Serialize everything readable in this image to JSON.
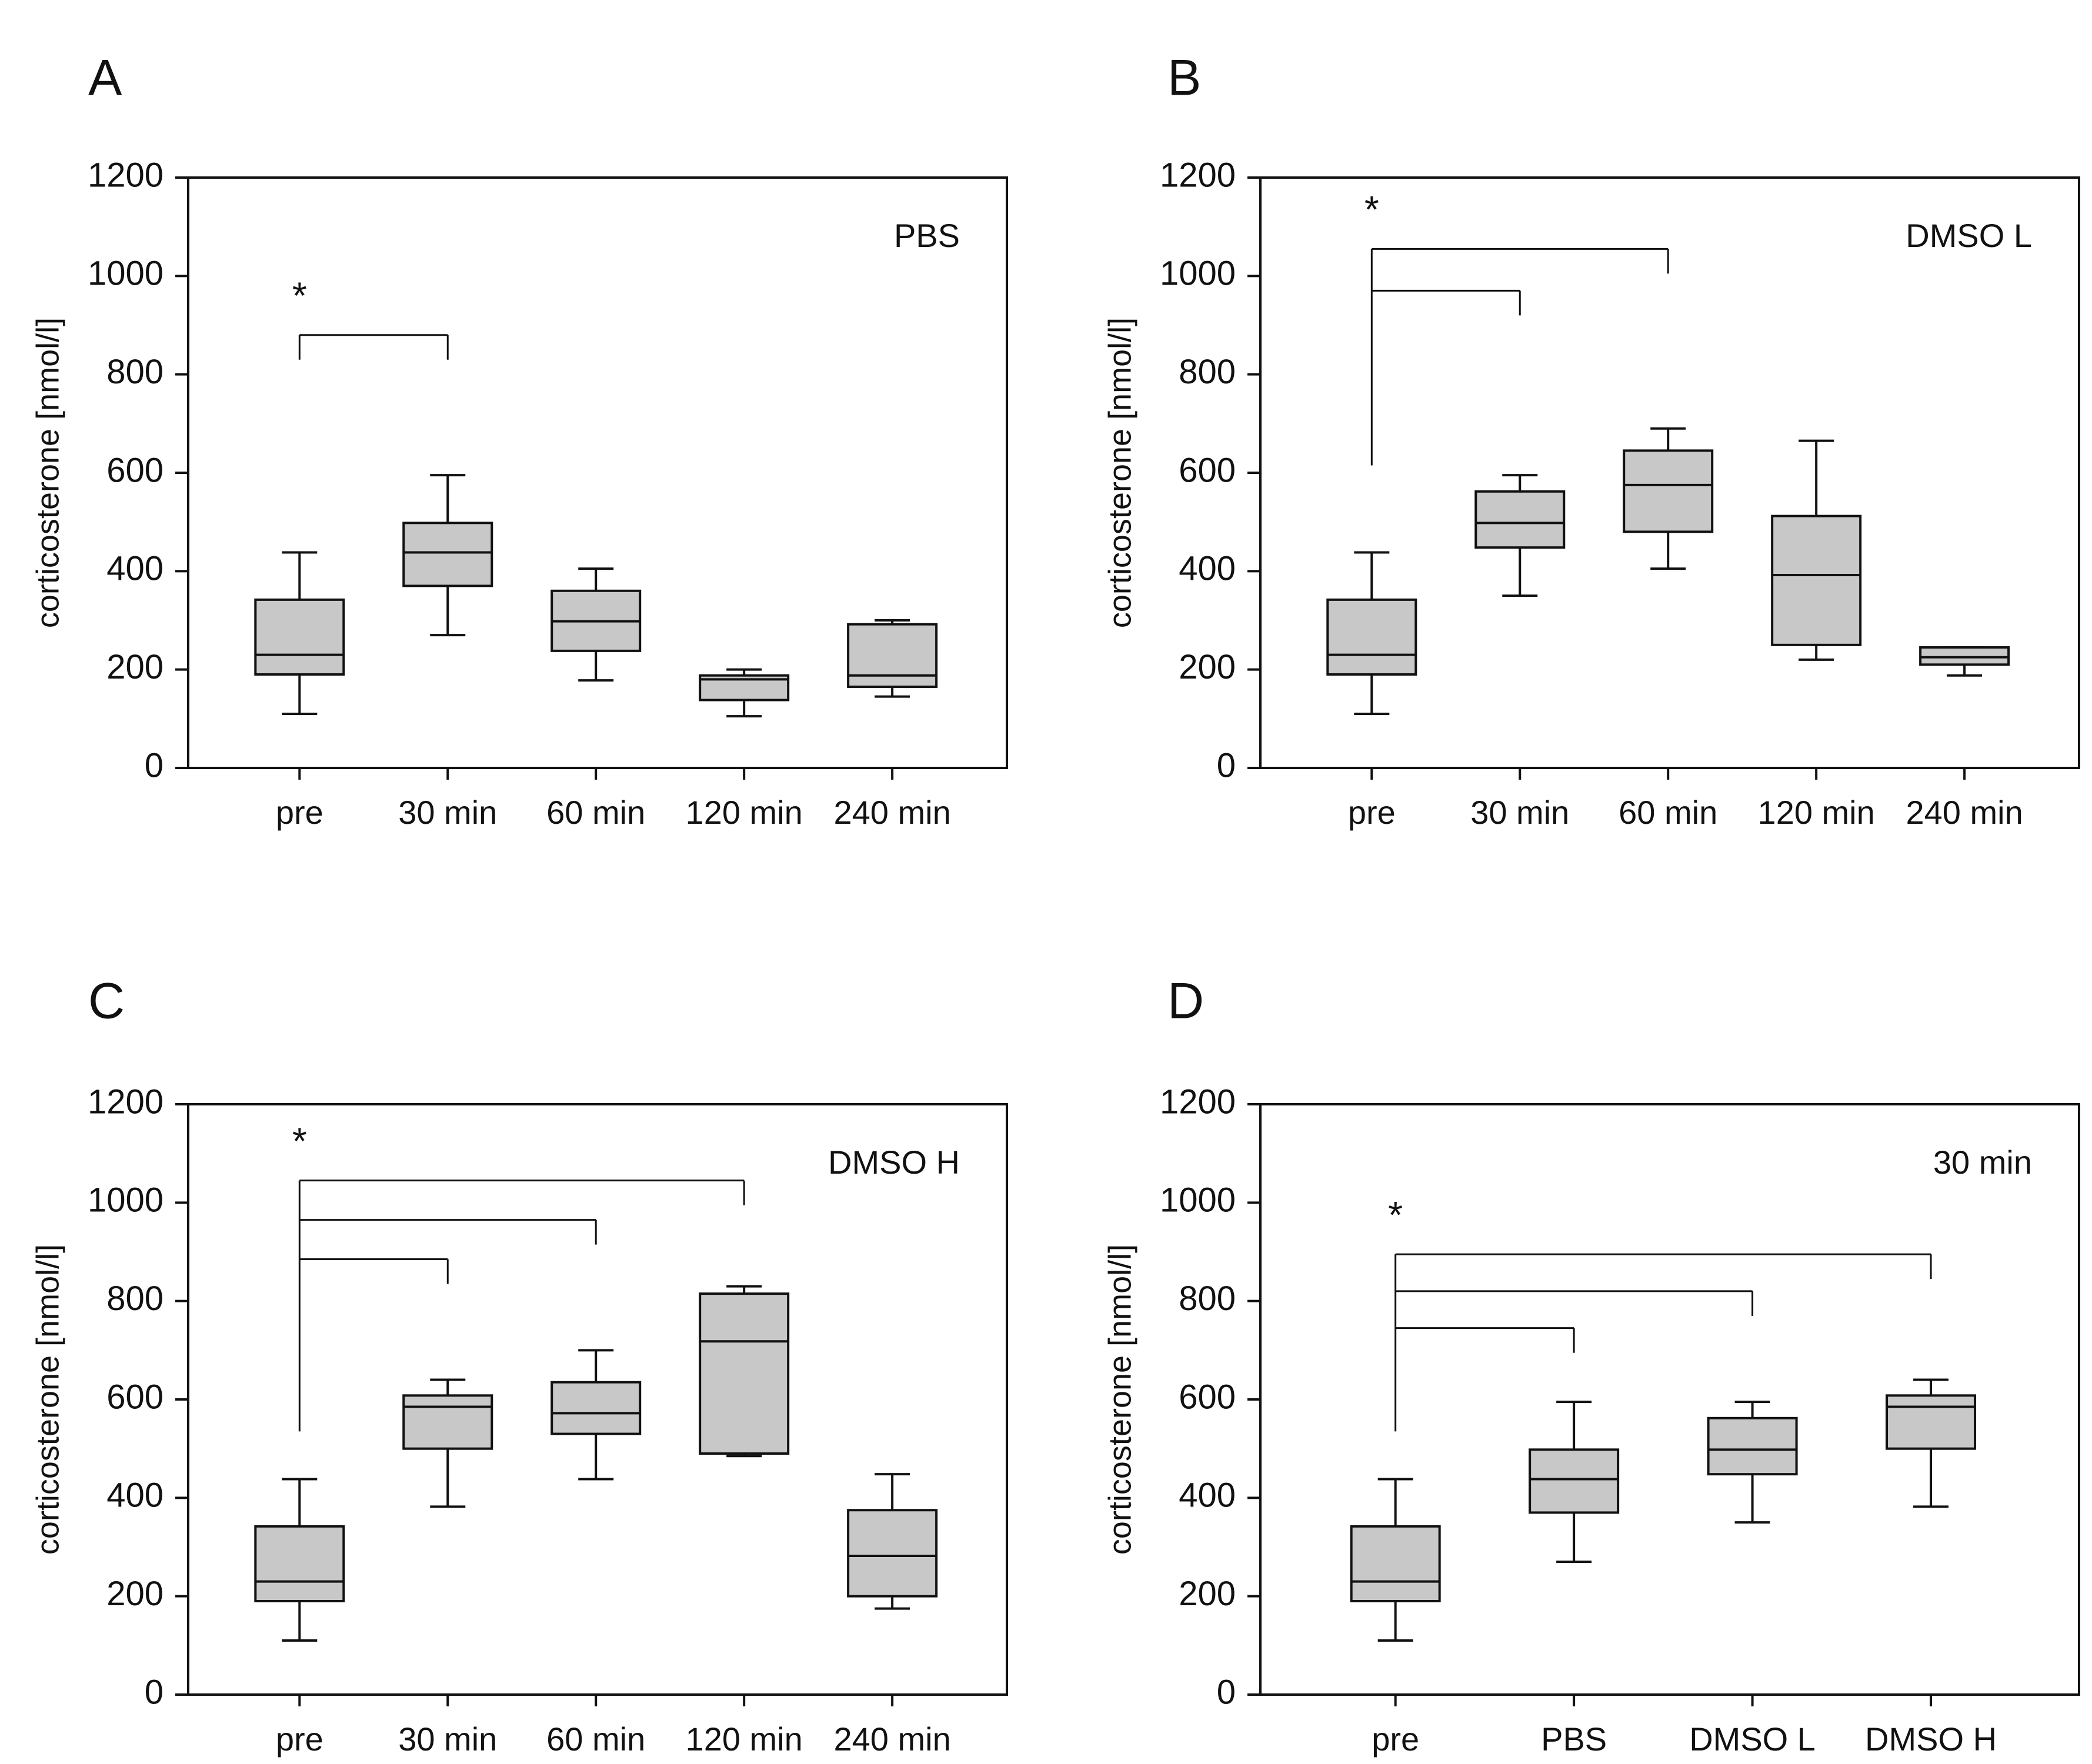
{
  "figure": {
    "panels": [
      {
        "letter": "A",
        "condition": "PBS"
      },
      {
        "letter": "B",
        "condition": "DMSO L"
      },
      {
        "letter": "C",
        "condition": "DMSO H"
      },
      {
        "letter": "D",
        "condition": "30 min"
      }
    ]
  },
  "chart_data": [
    {
      "type": "box",
      "panel": "A",
      "annotation": "PBS",
      "ylabel": "corticosterone [nmol/l]",
      "ylim": [
        0,
        1200
      ],
      "yticks": [
        0,
        200,
        400,
        600,
        800,
        1000,
        1200
      ],
      "categories": [
        "pre",
        "30 min",
        "60 min",
        "120 min",
        "240 min"
      ],
      "boxes": [
        {
          "min": 110,
          "q1": 190,
          "median": 230,
          "q3": 342,
          "max": 438
        },
        {
          "min": 270,
          "q1": 370,
          "median": 438,
          "q3": 498,
          "max": 595
        },
        {
          "min": 178,
          "q1": 238,
          "median": 298,
          "q3": 360,
          "max": 405
        },
        {
          "min": 105,
          "q1": 138,
          "median": 180,
          "q3": 188,
          "max": 200
        },
        {
          "min": 145,
          "q1": 165,
          "median": 188,
          "q3": 292,
          "max": 300
        }
      ],
      "significance": {
        "label": "*",
        "brackets": [
          {
            "from": 0,
            "to": 1,
            "y": 880
          }
        ]
      }
    },
    {
      "type": "box",
      "panel": "B",
      "annotation": "DMSO L",
      "ylabel": "corticosterone [nmol/l]",
      "ylim": [
        0,
        1200
      ],
      "yticks": [
        0,
        200,
        400,
        600,
        800,
        1000,
        1200
      ],
      "categories": [
        "pre",
        "30 min",
        "60 min",
        "120 min",
        "240 min"
      ],
      "boxes": [
        {
          "min": 110,
          "q1": 190,
          "median": 230,
          "q3": 342,
          "max": 438
        },
        {
          "min": 350,
          "q1": 448,
          "median": 498,
          "q3": 562,
          "max": 595
        },
        {
          "min": 405,
          "q1": 480,
          "median": 575,
          "q3": 645,
          "max": 690
        },
        {
          "min": 220,
          "q1": 250,
          "median": 392,
          "q3": 512,
          "max": 665
        },
        {
          "min": 188,
          "q1": 210,
          "median": 225,
          "q3": 245,
          "max": 245
        }
      ],
      "significance": {
        "label": "*",
        "stem_base": 615,
        "brackets": [
          {
            "from": 0,
            "to": 1,
            "y": 970
          },
          {
            "from": 0,
            "to": 2,
            "y": 1055
          }
        ]
      }
    },
    {
      "type": "box",
      "panel": "C",
      "annotation": "DMSO H",
      "ylabel": "corticosterone [nmol/l]",
      "ylim": [
        0,
        1200
      ],
      "yticks": [
        0,
        200,
        400,
        600,
        800,
        1000,
        1200
      ],
      "categories": [
        "pre",
        "30 min",
        "60 min",
        "120 min",
        "240 min"
      ],
      "boxes": [
        {
          "min": 110,
          "q1": 190,
          "median": 230,
          "q3": 342,
          "max": 438
        },
        {
          "min": 382,
          "q1": 500,
          "median": 585,
          "q3": 608,
          "max": 640
        },
        {
          "min": 438,
          "q1": 530,
          "median": 572,
          "q3": 635,
          "max": 700
        },
        {
          "min": 485,
          "q1": 490,
          "median": 718,
          "q3": 815,
          "max": 830
        },
        {
          "min": 175,
          "q1": 200,
          "median": 282,
          "q3": 375,
          "max": 448
        }
      ],
      "significance": {
        "label": "*",
        "stem_base": 535,
        "brackets": [
          {
            "from": 0,
            "to": 1,
            "y": 885
          },
          {
            "from": 0,
            "to": 2,
            "y": 965
          },
          {
            "from": 0,
            "to": 3,
            "y": 1045
          }
        ]
      }
    },
    {
      "type": "box",
      "panel": "D",
      "annotation": "30 min",
      "ylabel": "corticosterone [nmol/l]",
      "ylim": [
        0,
        1200
      ],
      "yticks": [
        0,
        200,
        400,
        600,
        800,
        1000,
        1200
      ],
      "categories": [
        "pre",
        "PBS",
        "DMSO L",
        "DMSO H"
      ],
      "boxes": [
        {
          "min": 110,
          "q1": 190,
          "median": 230,
          "q3": 342,
          "max": 438
        },
        {
          "min": 270,
          "q1": 370,
          "median": 438,
          "q3": 498,
          "max": 595
        },
        {
          "min": 350,
          "q1": 448,
          "median": 498,
          "q3": 562,
          "max": 595
        },
        {
          "min": 382,
          "q1": 500,
          "median": 585,
          "q3": 608,
          "max": 640
        }
      ],
      "significance": {
        "label": "*",
        "stem_base": 535,
        "brackets": [
          {
            "from": 0,
            "to": 1,
            "y": 745
          },
          {
            "from": 0,
            "to": 2,
            "y": 820
          },
          {
            "from": 0,
            "to": 3,
            "y": 895
          }
        ]
      }
    }
  ]
}
